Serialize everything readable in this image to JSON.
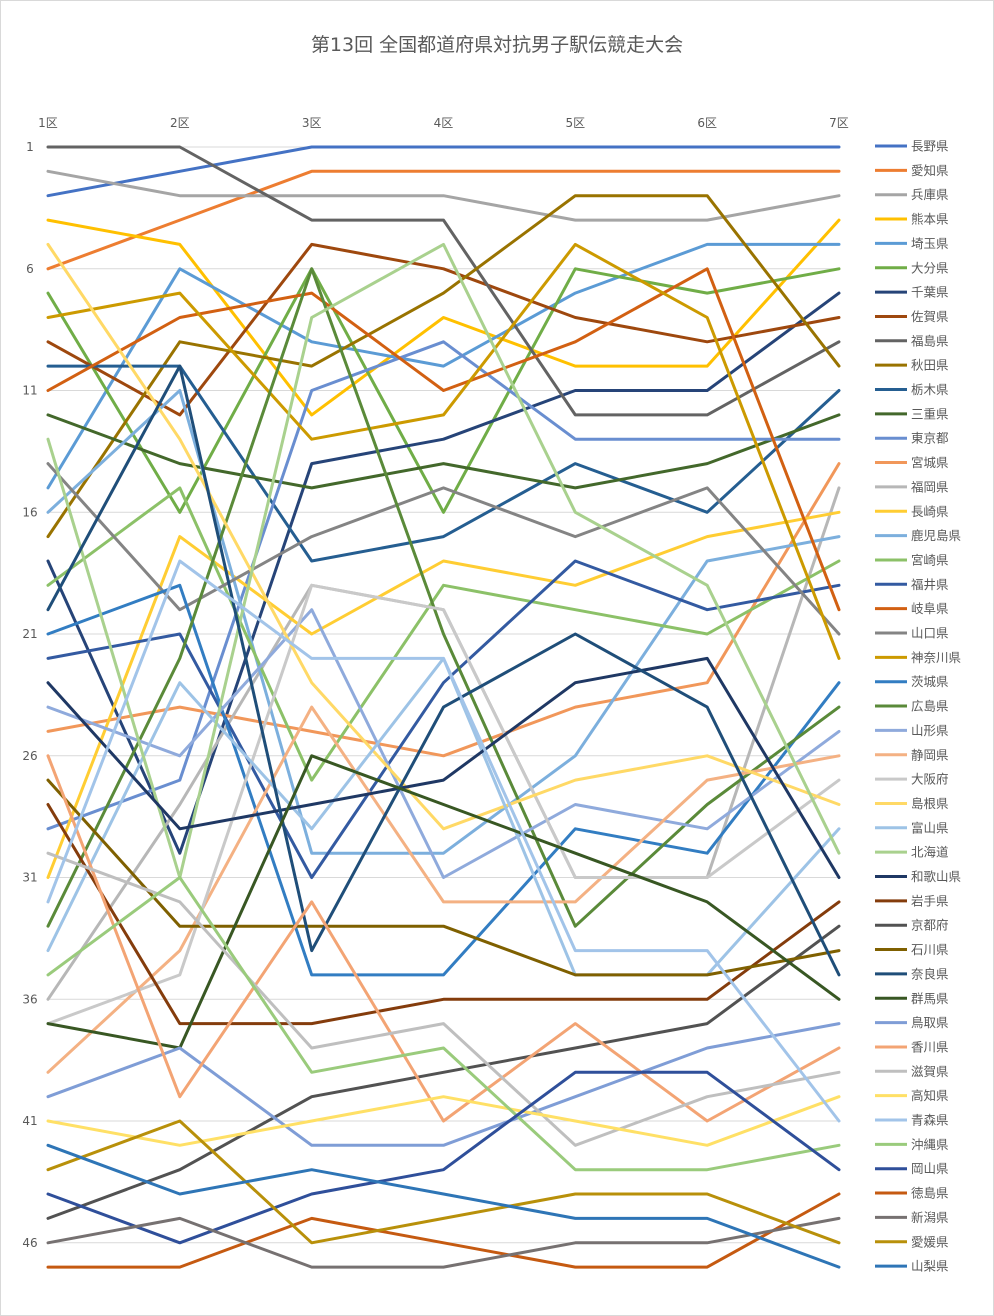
{
  "chart_data": {
    "type": "line",
    "title": "第13回 全国都道府県対抗男子駅伝競走大会",
    "x": [
      "1区",
      "2区",
      "3区",
      "4区",
      "5区",
      "6区",
      "7区"
    ],
    "y_ticks": [
      1,
      6,
      11,
      16,
      21,
      26,
      31,
      36,
      41,
      46
    ],
    "ylim": [
      1,
      47
    ],
    "y_inverted": true,
    "x_axis_position": "top",
    "grid": true,
    "legend": "right",
    "series": [
      {
        "name": "長野県",
        "color": "#4472C4",
        "values": [
          3,
          2,
          1,
          1,
          1,
          1,
          1
        ]
      },
      {
        "name": "愛知県",
        "color": "#ED7D31",
        "values": [
          6,
          4,
          2,
          2,
          2,
          2,
          2
        ]
      },
      {
        "name": "兵庫県",
        "color": "#A5A5A5",
        "values": [
          2,
          3,
          3,
          3,
          4,
          4,
          3
        ]
      },
      {
        "name": "熊本県",
        "color": "#FFC000",
        "values": [
          4,
          5,
          12,
          8,
          10,
          10,
          4
        ]
      },
      {
        "name": "埼玉県",
        "color": "#5B9BD5",
        "values": [
          15,
          6,
          9,
          10,
          7,
          5,
          5
        ]
      },
      {
        "name": "大分県",
        "color": "#70AD47",
        "values": [
          7,
          16,
          6,
          16,
          6,
          7,
          6
        ]
      },
      {
        "name": "千葉県",
        "color": "#264478",
        "values": [
          18,
          30,
          14,
          13,
          11,
          11,
          7
        ]
      },
      {
        "name": "佐賀県",
        "color": "#9E480E",
        "values": [
          9,
          12,
          5,
          6,
          8,
          9,
          8
        ]
      },
      {
        "name": "福島県",
        "color": "#636363",
        "values": [
          1,
          1,
          4,
          4,
          12,
          12,
          9
        ]
      },
      {
        "name": "秋田県",
        "color": "#997300",
        "values": [
          17,
          9,
          10,
          7,
          3,
          3,
          10
        ]
      },
      {
        "name": "栃木県",
        "color": "#255E91",
        "values": [
          10,
          10,
          18,
          17,
          14,
          16,
          11
        ]
      },
      {
        "name": "三重県",
        "color": "#43682B",
        "values": [
          12,
          14,
          15,
          14,
          15,
          14,
          12
        ]
      },
      {
        "name": "東京都",
        "color": "#698ED0",
        "values": [
          29,
          27,
          11,
          9,
          13,
          13,
          13
        ]
      },
      {
        "name": "宮城県",
        "color": "#F1975A",
        "values": [
          25,
          24,
          25,
          26,
          24,
          23,
          14
        ]
      },
      {
        "name": "福岡県",
        "color": "#B7B7B7",
        "values": [
          36,
          28,
          19,
          20,
          31,
          31,
          15
        ]
      },
      {
        "name": "長崎県",
        "color": "#FFCD33",
        "values": [
          31,
          17,
          21,
          18,
          19,
          17,
          16
        ]
      },
      {
        "name": "鹿児島県",
        "color": "#7CAFDD",
        "values": [
          16,
          11,
          30,
          30,
          26,
          18,
          17
        ]
      },
      {
        "name": "宮崎県",
        "color": "#8CC168",
        "values": [
          19,
          15,
          27,
          19,
          20,
          21,
          18
        ]
      },
      {
        "name": "福井県",
        "color": "#335AA1",
        "values": [
          22,
          21,
          31,
          23,
          18,
          20,
          19
        ]
      },
      {
        "name": "岐阜県",
        "color": "#D26012",
        "values": [
          11,
          8,
          7,
          11,
          9,
          6,
          20
        ]
      },
      {
        "name": "山口県",
        "color": "#848484",
        "values": [
          14,
          20,
          17,
          15,
          17,
          15,
          21
        ]
      },
      {
        "name": "神奈川県",
        "color": "#CC9A00",
        "values": [
          8,
          7,
          13,
          12,
          5,
          8,
          22
        ]
      },
      {
        "name": "茨城県",
        "color": "#327DC2",
        "values": [
          21,
          19,
          35,
          35,
          29,
          30,
          23
        ]
      },
      {
        "name": "広島県",
        "color": "#5A8A39",
        "values": [
          33,
          22,
          6,
          21,
          33,
          28,
          24
        ]
      },
      {
        "name": "山形県",
        "color": "#8FAADC",
        "values": [
          24,
          26,
          20,
          31,
          28,
          29,
          25
        ]
      },
      {
        "name": "静岡県",
        "color": "#F4B183",
        "values": [
          39,
          34,
          24,
          32,
          32,
          27,
          26
        ]
      },
      {
        "name": "大阪府",
        "color": "#C9C9C9",
        "values": [
          37,
          35,
          19,
          20,
          31,
          31,
          27
        ]
      },
      {
        "name": "島根県",
        "color": "#FFD966",
        "values": [
          5,
          13,
          23,
          29,
          27,
          26,
          28
        ]
      },
      {
        "name": "富山県",
        "color": "#9DC3E6",
        "values": [
          34,
          23,
          29,
          22,
          35,
          35,
          29
        ]
      },
      {
        "name": "北海道",
        "color": "#A9D18E",
        "values": [
          13,
          31,
          8,
          5,
          16,
          19,
          30
        ]
      },
      {
        "name": "和歌山県",
        "color": "#1F3864",
        "values": [
          23,
          29,
          28,
          27,
          23,
          22,
          31
        ]
      },
      {
        "name": "岩手県",
        "color": "#843C0C",
        "values": [
          28,
          37,
          37,
          36,
          36,
          36,
          32
        ]
      },
      {
        "name": "京都府",
        "color": "#525252",
        "values": [
          45,
          43,
          40,
          39,
          38,
          37,
          33
        ]
      },
      {
        "name": "石川県",
        "color": "#7F6000",
        "values": [
          27,
          33,
          33,
          33,
          35,
          35,
          34
        ]
      },
      {
        "name": "奈良県",
        "color": "#1F4E79",
        "values": [
          20,
          10,
          34,
          24,
          21,
          24,
          35
        ]
      },
      {
        "name": "群馬県",
        "color": "#385723",
        "values": [
          37,
          38,
          26,
          28,
          30,
          32,
          36
        ]
      },
      {
        "name": "鳥取県",
        "color": "#7F9DD6",
        "values": [
          40,
          38,
          42,
          42,
          40,
          38,
          37
        ]
      },
      {
        "name": "香川県",
        "color": "#F3A474",
        "values": [
          26,
          40,
          32,
          41,
          37,
          41,
          38
        ]
      },
      {
        "name": "滋賀県",
        "color": "#BFBFBF",
        "values": [
          30,
          32,
          38,
          37,
          42,
          40,
          39
        ]
      },
      {
        "name": "高知県",
        "color": "#FFE066",
        "values": [
          41,
          42,
          41,
          40,
          41,
          42,
          40
        ]
      },
      {
        "name": "青森県",
        "color": "#A2C4E9",
        "values": [
          32,
          18,
          22,
          22,
          34,
          34,
          41
        ]
      },
      {
        "name": "沖縄県",
        "color": "#9ACB7C",
        "values": [
          35,
          31,
          39,
          38,
          43,
          43,
          42
        ]
      },
      {
        "name": "岡山県",
        "color": "#2F4F9A",
        "values": [
          44,
          46,
          44,
          43,
          39,
          39,
          43
        ]
      },
      {
        "name": "徳島県",
        "color": "#C55A11",
        "values": [
          47,
          47,
          45,
          46,
          47,
          47,
          44
        ]
      },
      {
        "name": "新潟県",
        "color": "#767171",
        "values": [
          46,
          45,
          47,
          47,
          46,
          46,
          45
        ]
      },
      {
        "name": "愛媛県",
        "color": "#B8900A",
        "values": [
          43,
          41,
          46,
          45,
          44,
          44,
          46
        ]
      },
      {
        "name": "山梨県",
        "color": "#2E75B6",
        "values": [
          42,
          44,
          43,
          44,
          45,
          45,
          47
        ]
      }
    ]
  }
}
